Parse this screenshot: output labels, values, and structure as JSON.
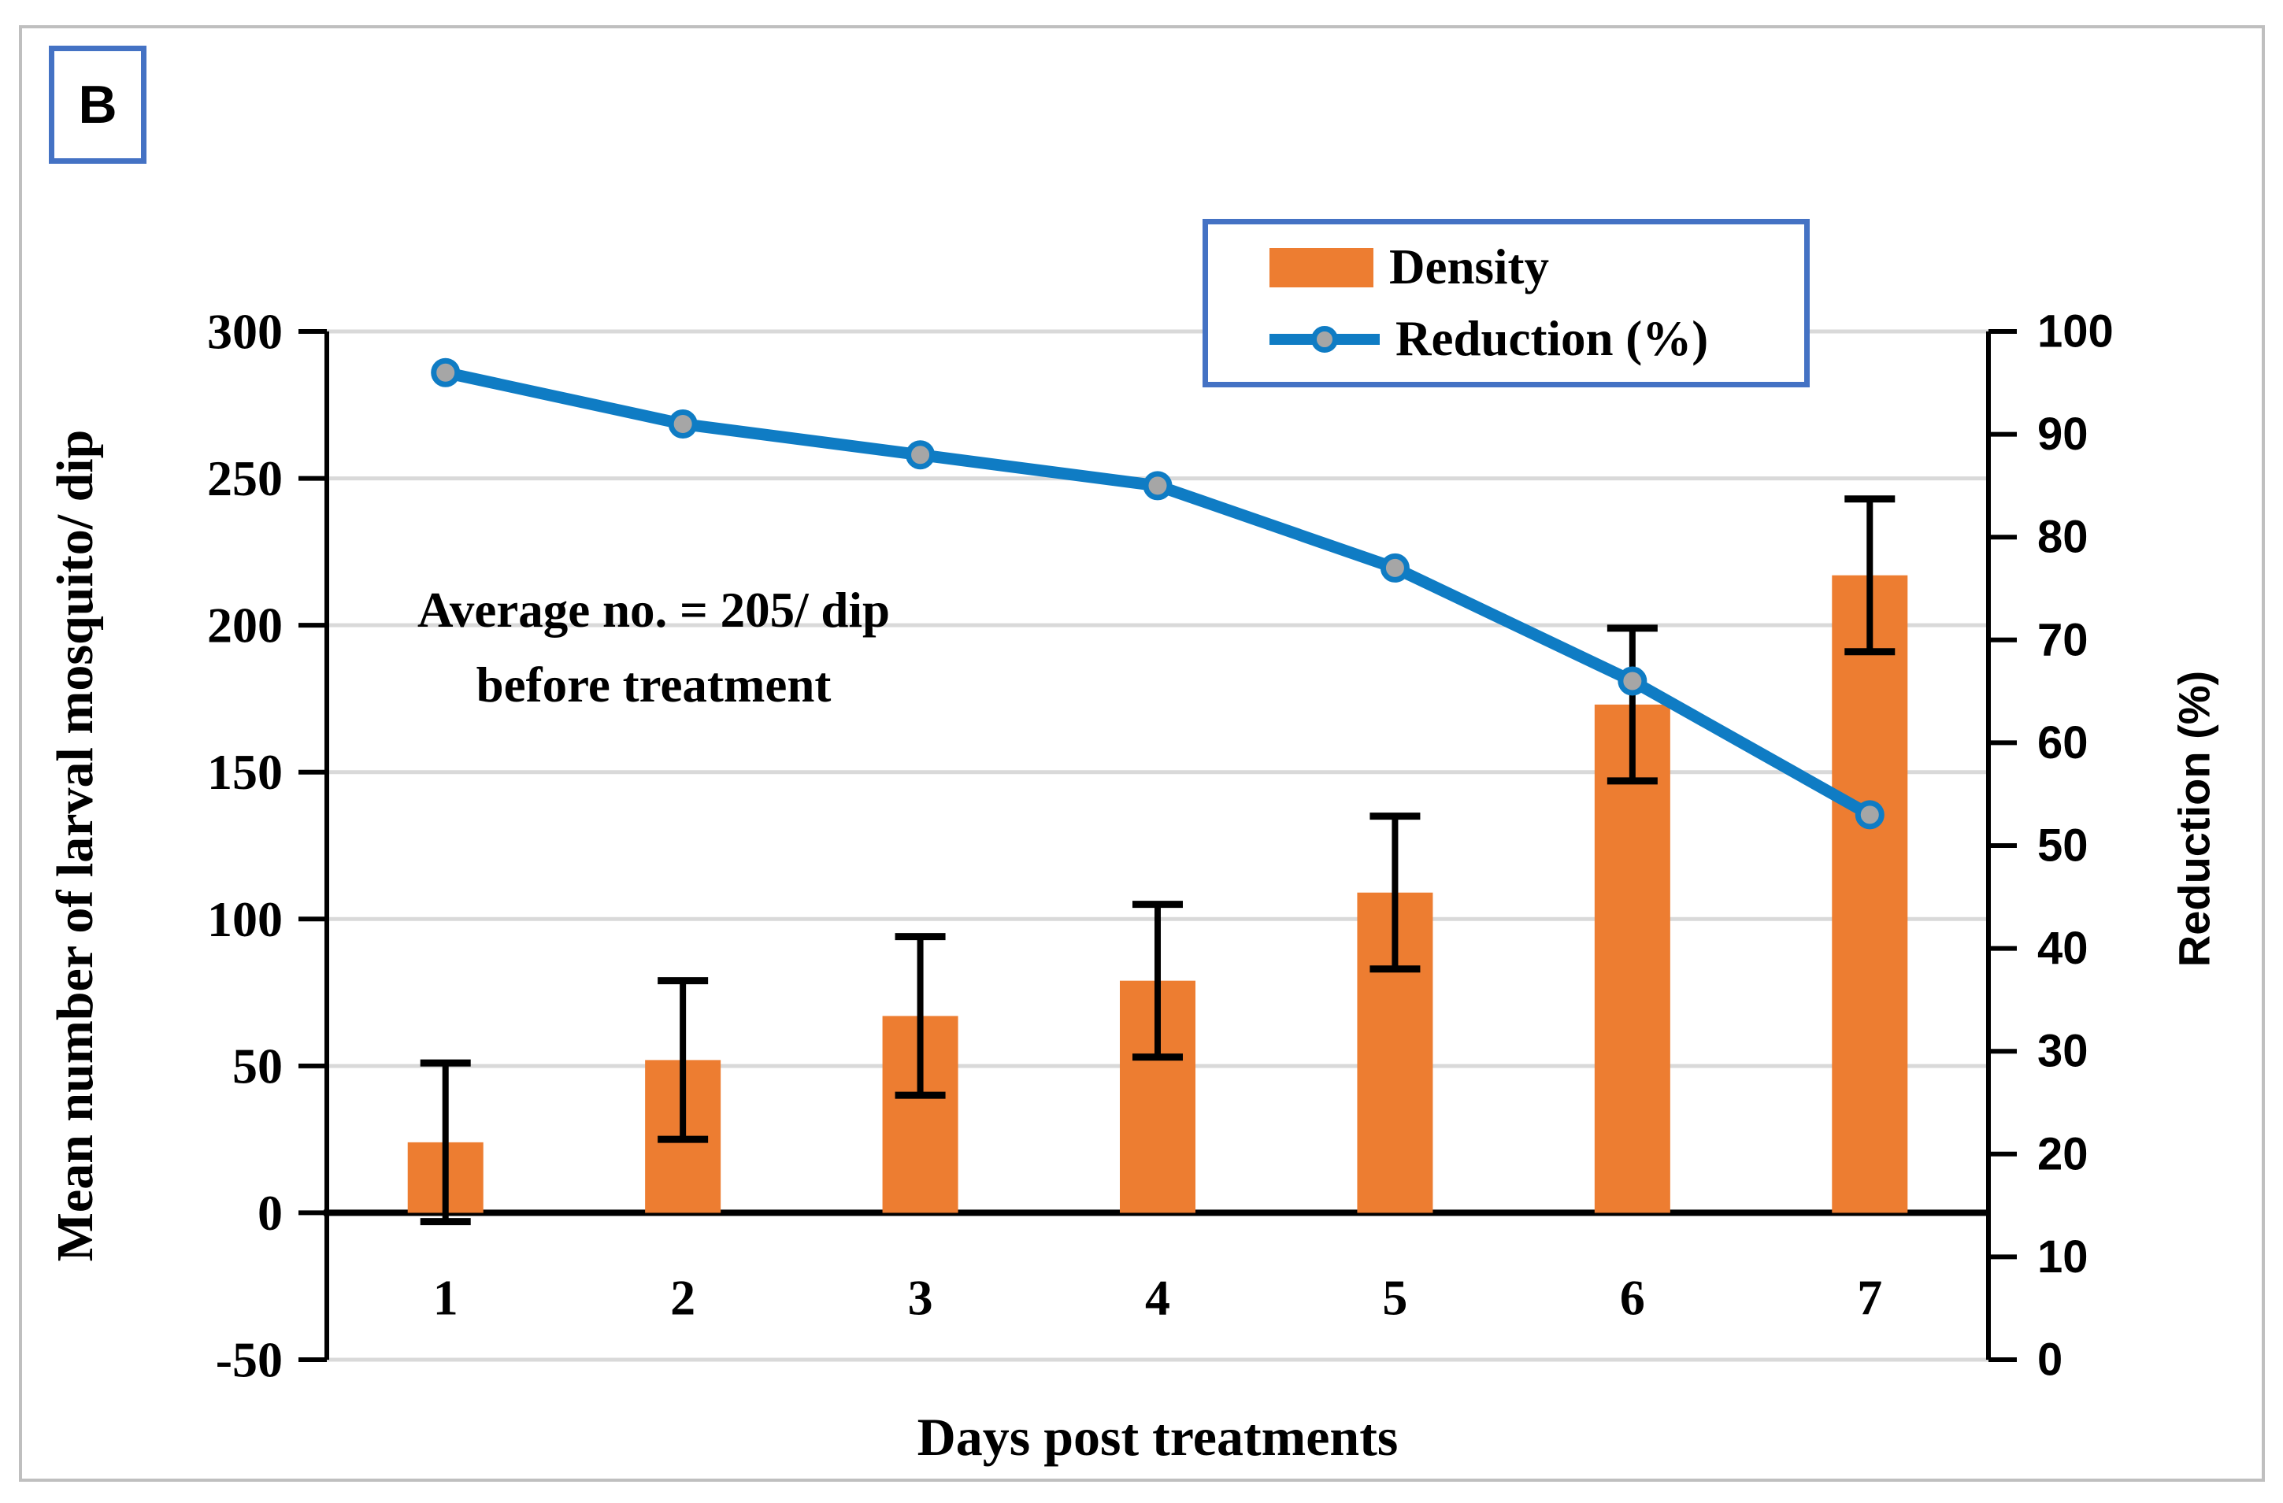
{
  "panel_label": "B",
  "colors": {
    "bar": "#ED7D31",
    "line": "#0F7CC4",
    "marker_fill": "#A6A6A6",
    "legend_border": "#4472C4",
    "grid": "#D9D9D9",
    "axis": "#000000",
    "figure_border": "#BFBFBF"
  },
  "legend": {
    "density_label": "Density",
    "reduction_label": "Reduction (%)"
  },
  "annotation": {
    "line1": "Average no. = 205/ dip",
    "line2": "before treatment"
  },
  "chart_data": {
    "type": "bar+line",
    "categories": [
      "1",
      "2",
      "3",
      "4",
      "5",
      "6",
      "7"
    ],
    "series": [
      {
        "name": "Density",
        "type": "bar",
        "axis": "left",
        "values": [
          24,
          52,
          67,
          79,
          109,
          173,
          217
        ],
        "error_bars": [
          27,
          27,
          27,
          26,
          26,
          26,
          26
        ]
      },
      {
        "name": "Reduction (%)",
        "type": "line",
        "axis": "right",
        "values": [
          96,
          91,
          88,
          85,
          77,
          66,
          53
        ]
      }
    ],
    "left_axis": {
      "title": "Mean number of larval mosquito/ dip",
      "min": -50,
      "max": 300,
      "tick_step": 50
    },
    "right_axis": {
      "title": "Reduction (%)",
      "min": 0,
      "max": 100,
      "tick_step": 10
    },
    "x_axis": {
      "title": "Days post treatments"
    },
    "annotation_text": "Average no. = 205/ dip before treatment",
    "grid": "horizontal-only",
    "legend_position": "top-right-inside"
  }
}
